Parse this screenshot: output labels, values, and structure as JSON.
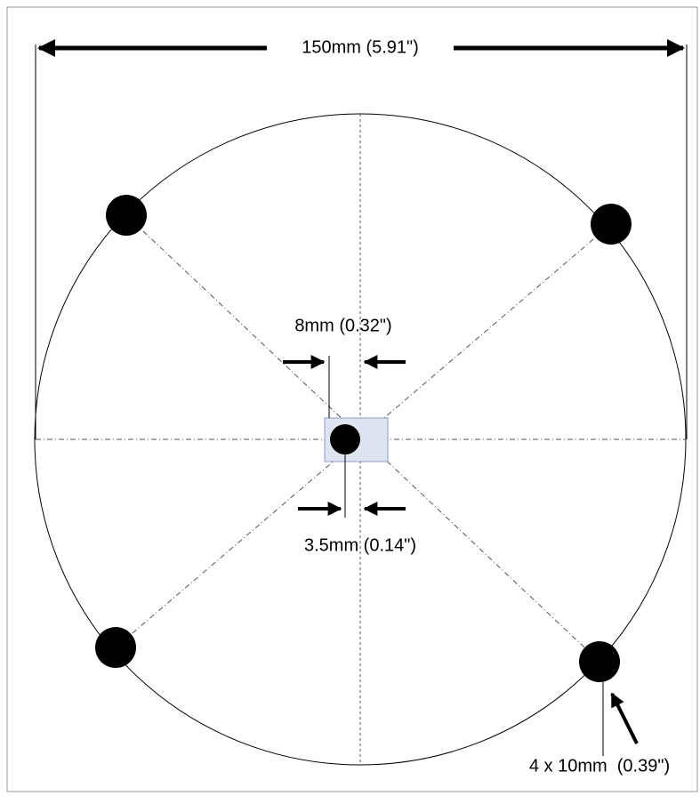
{
  "dimensions": {
    "overall_width": "150mm (5.91\")",
    "center_spacing": "8mm (0.32\")",
    "center_hole": "3.5mm (0.14\")",
    "mount_holes": "4 x 10mm  (0.39\")"
  }
}
